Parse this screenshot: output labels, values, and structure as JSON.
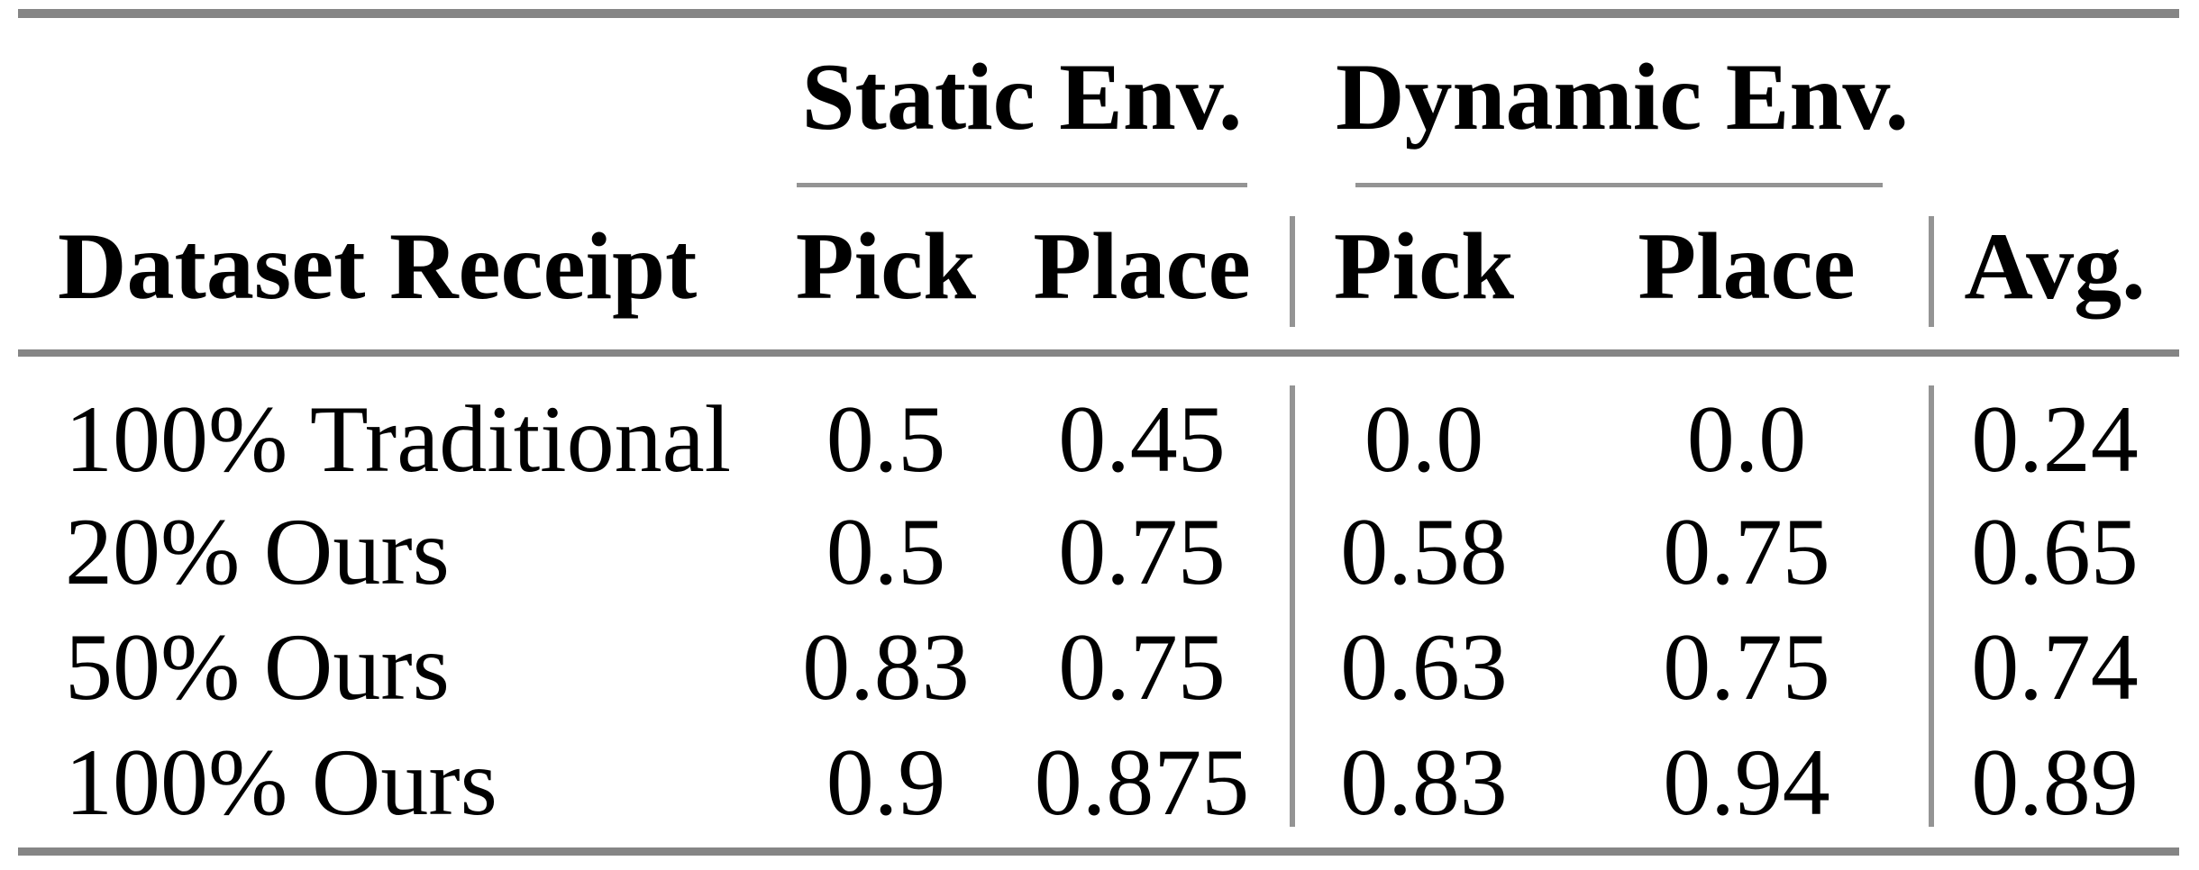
{
  "table": {
    "groups": [
      {
        "label": "Static Env."
      },
      {
        "label": "Dynamic Env."
      }
    ],
    "columns": [
      "Dataset Receipt",
      "Pick",
      "Place",
      "Pick",
      "Place",
      "Avg."
    ],
    "rows": [
      {
        "label": "100% Traditional",
        "values": [
          "0.5",
          "0.45",
          "0.0",
          "0.0",
          "0.24"
        ]
      },
      {
        "label": "20% Ours",
        "values": [
          "0.5",
          "0.75",
          "0.58",
          "0.75",
          "0.65"
        ]
      },
      {
        "label": "50% Ours",
        "values": [
          "0.83",
          "0.75",
          "0.63",
          "0.75",
          "0.74"
        ]
      },
      {
        "label": "100% Ours",
        "values": [
          "0.9",
          "0.875",
          "0.83",
          "0.94",
          "0.89"
        ]
      }
    ],
    "colors": {
      "rule_thick": "#858585",
      "rule_thin": "#949494",
      "text": "#000000",
      "background": "#ffffff"
    }
  },
  "chart_data": {
    "type": "table",
    "title": "",
    "column_groups": [
      "",
      "Static Env.",
      "Static Env.",
      "Dynamic Env.",
      "Dynamic Env.",
      ""
    ],
    "columns": [
      "Dataset Receipt",
      "Pick",
      "Place",
      "Pick",
      "Place",
      "Avg."
    ],
    "rows": [
      [
        "100% Traditional",
        0.5,
        0.45,
        0.0,
        0.0,
        0.24
      ],
      [
        "20% Ours",
        0.5,
        0.75,
        0.58,
        0.75,
        0.65
      ],
      [
        "50% Ours",
        0.83,
        0.75,
        0.63,
        0.75,
        0.74
      ],
      [
        "100% Ours",
        0.9,
        0.875,
        0.83,
        0.94,
        0.89
      ]
    ]
  }
}
